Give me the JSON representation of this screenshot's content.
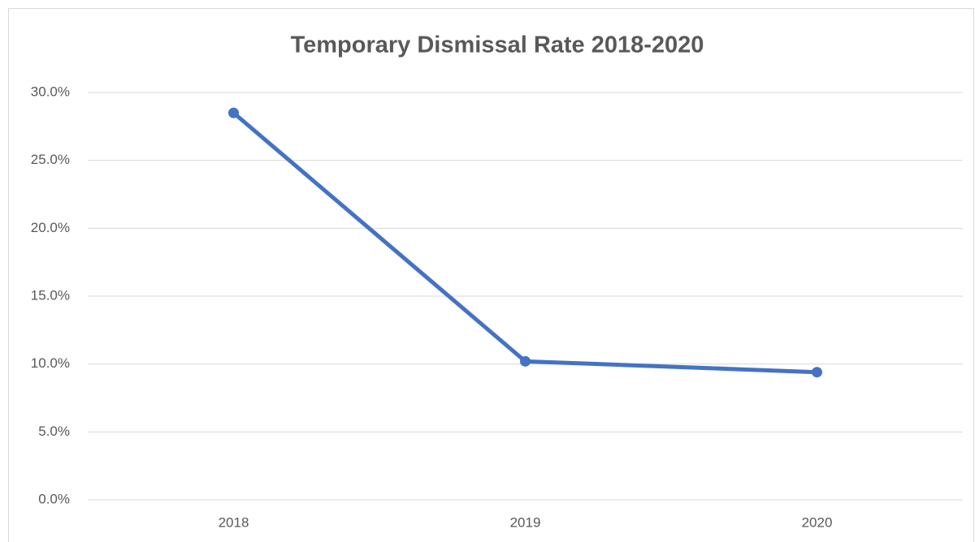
{
  "chart_data": {
    "type": "line",
    "title": "Temporary Dismissal Rate 2018-2020",
    "categories": [
      "2018",
      "2019",
      "2020"
    ],
    "series": [
      {
        "name": "Temporary Dismissal Rate",
        "color": "#4472c4",
        "values": [
          28.5,
          10.2,
          9.4
        ]
      }
    ],
    "ylim": [
      0,
      30
    ],
    "yticks": [
      {
        "value": 0,
        "label": "0.0%"
      },
      {
        "value": 5,
        "label": "5.0%"
      },
      {
        "value": 10,
        "label": "10.0%"
      },
      {
        "value": 15,
        "label": "15.0%"
      },
      {
        "value": 20,
        "label": "20.0%"
      },
      {
        "value": 25,
        "label": "25.0%"
      },
      {
        "value": 30,
        "label": "30.0%"
      }
    ],
    "grid": true
  }
}
